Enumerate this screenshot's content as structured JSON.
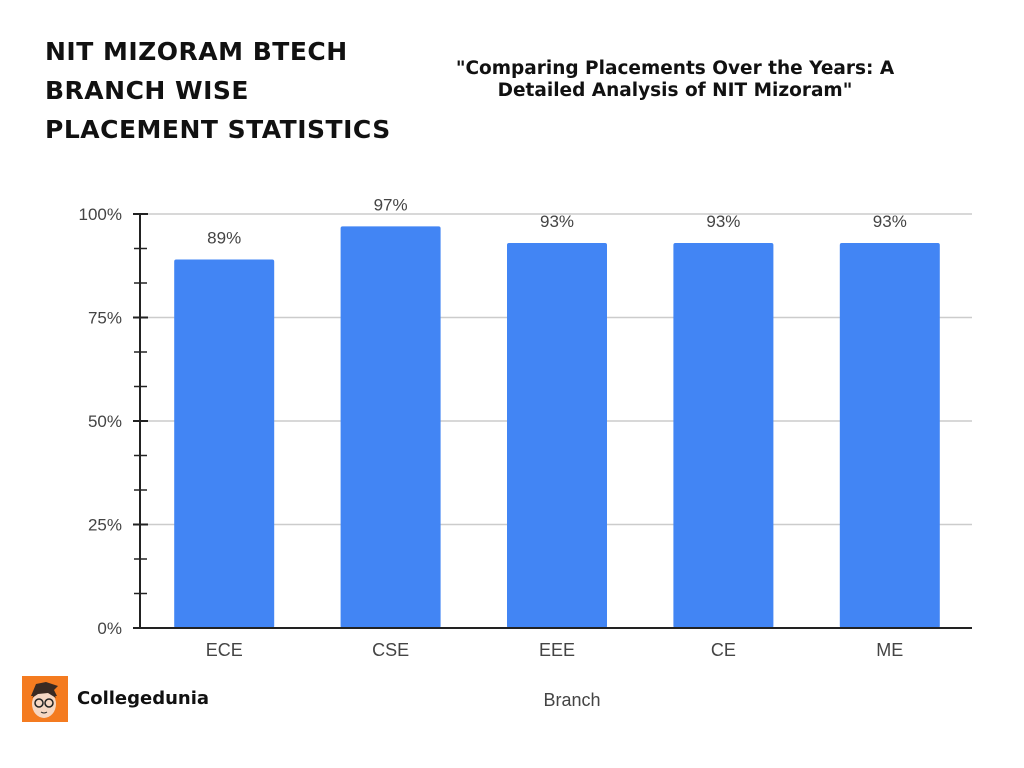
{
  "header": {
    "title_lines": [
      "NIT MIZORAM BTECH",
      "BRANCH WISE",
      "PLACEMENT STATISTICS"
    ],
    "subtitle_lines": [
      "\"Comparing Placements Over the Years: A",
      "Detailed Analysis of  NIT Mizoram\""
    ]
  },
  "chart_data": {
    "type": "bar",
    "categories": [
      "ECE",
      "CSE",
      "EEE",
      "CE",
      "ME"
    ],
    "values": [
      89,
      97,
      93,
      93,
      93
    ],
    "data_labels": [
      "89%",
      "97%",
      "93%",
      "93%",
      "93%"
    ],
    "xlabel": "Branch",
    "ylabel": "",
    "ylim": [
      0,
      100
    ],
    "yticks": [
      0,
      25,
      50,
      75,
      100
    ],
    "ytick_labels": [
      "0%",
      "25%",
      "50%",
      "75%",
      "100%"
    ],
    "grid": true,
    "bar_color": "#4285f4"
  },
  "brand": {
    "name": "Collegedunia",
    "logo_color": "#f47b20"
  }
}
